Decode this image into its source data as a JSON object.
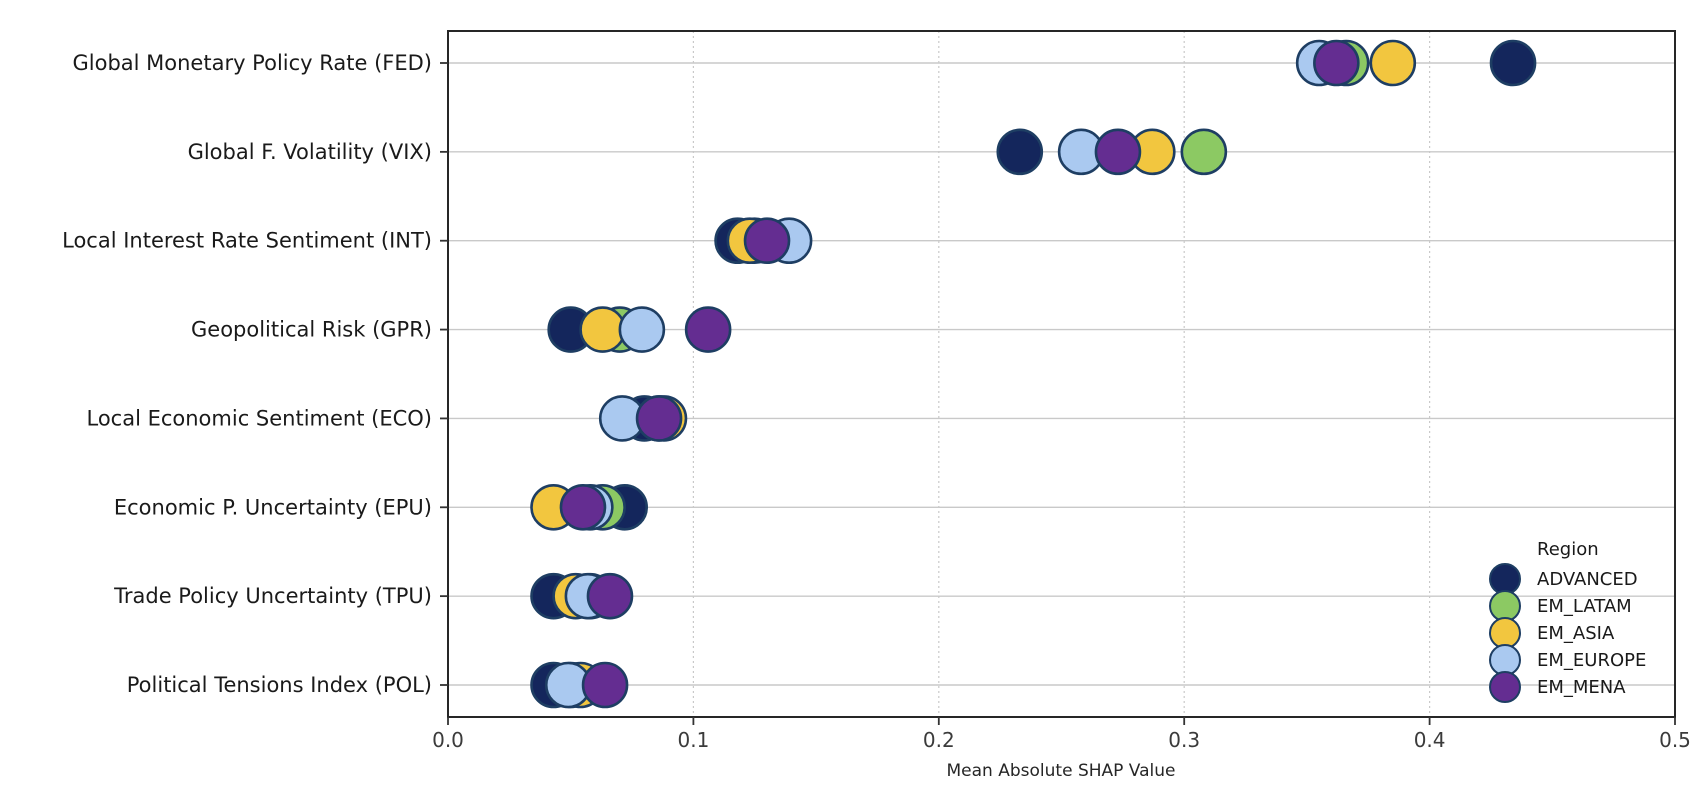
{
  "chart_data": {
    "type": "scatter",
    "title": "",
    "xlabel": "Mean Absolute SHAP Value",
    "ylabel": "",
    "xlim": [
      0.0,
      0.5
    ],
    "xticks": [
      0.0,
      0.1,
      0.2,
      0.3,
      0.4,
      0.5
    ],
    "xtick_labels": [
      "0.0",
      "0.1",
      "0.2",
      "0.3",
      "0.4",
      "0.5"
    ],
    "grid": {
      "horizontal": "solid",
      "vertical": "dashed"
    },
    "categories": [
      "Global Monetary Policy Rate (FED)",
      "Global F. Volatility (VIX)",
      "Local Interest Rate Sentiment (INT)",
      "Geopolitical Risk (GPR)",
      "Local Economic Sentiment (ECO)",
      "Economic P. Uncertainty (EPU)",
      "Trade Policy Uncertainty (TPU)",
      "Political Tensions Index (POL)"
    ],
    "series": [
      {
        "name": "ADVANCED",
        "color": "#14265c",
        "values": [
          0.434,
          0.233,
          0.118,
          0.05,
          0.08,
          0.072,
          0.043,
          0.043
        ]
      },
      {
        "name": "EM_LATAM",
        "color": "#8cc963",
        "values": [
          0.366,
          0.308,
          0.125,
          0.07,
          0.086,
          0.063,
          0.058,
          0.05
        ]
      },
      {
        "name": "EM_ASIA",
        "color": "#f2c63f",
        "values": [
          0.385,
          0.287,
          0.123,
          0.063,
          0.088,
          0.043,
          0.052,
          0.054
        ]
      },
      {
        "name": "EM_EUROPE",
        "color": "#aac9f0",
        "values": [
          0.355,
          0.258,
          0.139,
          0.079,
          0.071,
          0.058,
          0.057,
          0.049
        ]
      },
      {
        "name": "EM_MENA",
        "color": "#642d91",
        "values": [
          0.362,
          0.273,
          0.13,
          0.106,
          0.086,
          0.055,
          0.066,
          0.064
        ]
      }
    ],
    "legend": {
      "title": "Region",
      "position": "lower right inside plot",
      "entries": [
        "ADVANCED",
        "EM_LATAM",
        "EM_ASIA",
        "EM_EUROPE",
        "EM_MENA"
      ]
    },
    "style": {
      "marker_edge_color": "#1e3e63",
      "spine_color": "#262626",
      "grid_color": "#c9c9c9",
      "tick_label_color": "#3b3b3b",
      "category_label_color": "#1a1a1a",
      "background": "#ffffff"
    }
  }
}
